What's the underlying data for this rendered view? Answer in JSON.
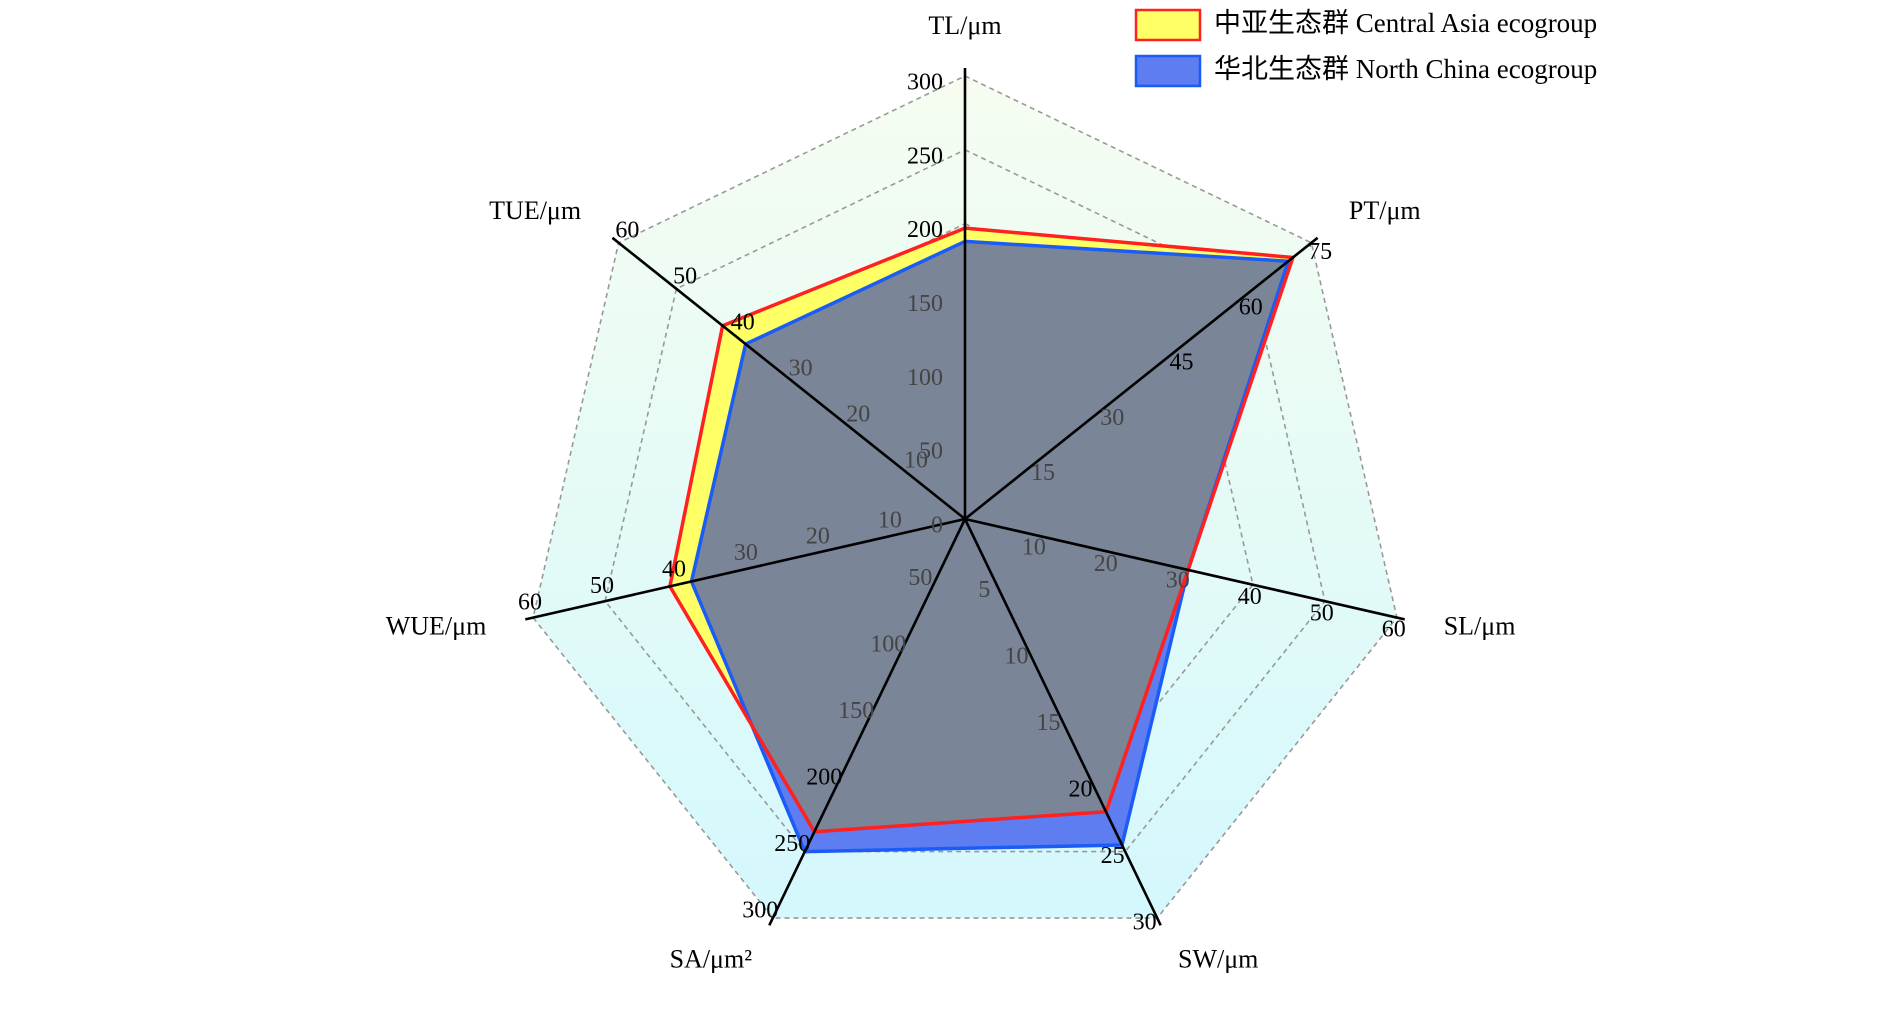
{
  "chart_data": {
    "type": "radar",
    "axes": [
      {
        "label": "TL/μm",
        "max": 300,
        "ticks": [
          "0",
          "50",
          "100",
          "150",
          "200",
          "250",
          "300"
        ]
      },
      {
        "label": "PT/μm",
        "max": 75,
        "ticks": [
          "15",
          "30",
          "45",
          "60",
          "75"
        ]
      },
      {
        "label": "SL/μm",
        "max": 60,
        "ticks": [
          "10",
          "20",
          "30",
          "40",
          "50",
          "60"
        ]
      },
      {
        "label": "SW/μm",
        "max": 30,
        "ticks": [
          "5",
          "10",
          "15",
          "20",
          "25",
          "30"
        ]
      },
      {
        "label": "SA/μm²",
        "max": 300,
        "ticks": [
          "50",
          "100",
          "150",
          "200",
          "250",
          "300"
        ]
      },
      {
        "label": "WUE/μm",
        "max": 60,
        "ticks": [
          "10",
          "20",
          "30",
          "40",
          "50",
          "60"
        ]
      },
      {
        "label": "TUE/μm",
        "max": 60,
        "ticks": [
          "10",
          "20",
          "30",
          "40",
          "50",
          "60"
        ]
      }
    ],
    "series": [
      {
        "name": "中亚生态群 Central Asia ecogroup",
        "values": [
          197,
          71,
          31,
          22,
          235,
          41,
          42
        ],
        "fill": "#ffff66",
        "stroke": "#ff2020"
      },
      {
        "name": "华北生态群 North China ecogroup",
        "values": [
          188,
          70,
          31,
          24.5,
          250,
          38,
          38
        ],
        "fill": "#5d7df0",
        "stroke": "#1a5cf5"
      }
    ],
    "legend_position": "top-right",
    "grid": true,
    "colors": {
      "grid": "#999999",
      "axis": "#000000",
      "overlap": "#7b8598",
      "bg_top": "#f6fdf0",
      "bg_bottom": "#d4f8fd"
    }
  }
}
